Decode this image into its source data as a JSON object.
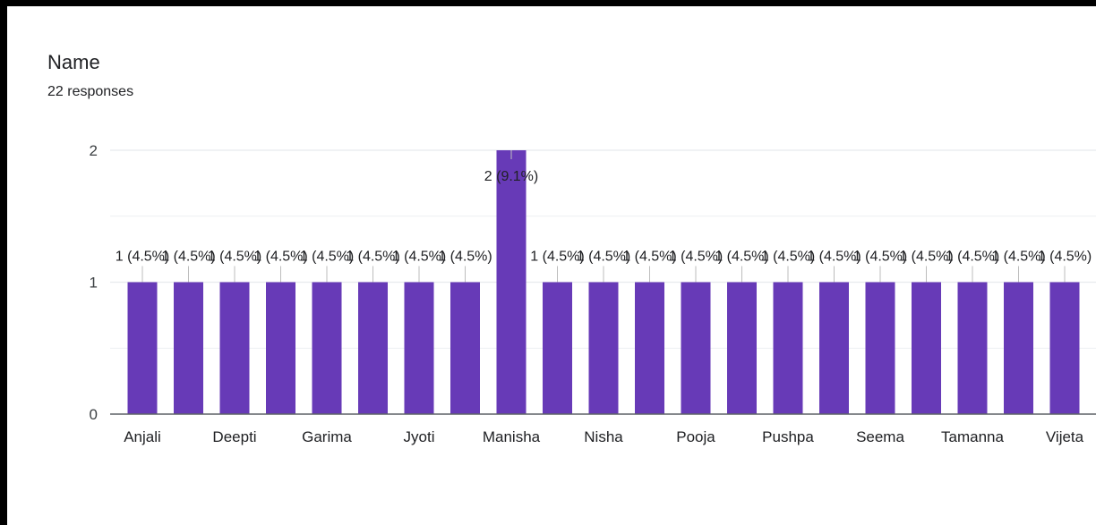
{
  "question": {
    "title": "Name",
    "responses": "22 responses"
  },
  "colors": {
    "bar": "#673ab7",
    "grid": "#e8eaed",
    "axis": "#5f6368"
  },
  "chart_data": {
    "type": "bar",
    "categories": [
      "Anjali",
      "",
      "Deepti",
      "",
      "Garima",
      "",
      "Jyoti",
      "",
      "Manisha",
      "",
      "Nisha",
      "",
      "Pooja",
      "",
      "Pushpa",
      "",
      "Seema",
      "",
      "Tamanna",
      "",
      "Vijeta"
    ],
    "values": [
      1,
      1,
      1,
      1,
      1,
      1,
      1,
      1,
      2,
      1,
      1,
      1,
      1,
      1,
      1,
      1,
      1,
      1,
      1,
      1,
      1
    ],
    "data_labels": [
      "1 (4.5%)",
      "1 (4.5%)",
      "1 (4.5%)",
      "1 (4.5%)",
      "1 (4.5%)",
      "1 (4.5%)",
      "1 (4.5%)",
      "1 (4.5%)",
      "2 (9.1%)",
      "1 (4.5%)",
      "1 (4.5%)",
      "1 (4.5%)",
      "1 (4.5%)",
      "1 (4.5%)",
      "1 (4.5%)",
      "1 (4.5%)",
      "1 (4.5%)",
      "1 (4.5%)",
      "1 (4.5%)",
      "1 (4.5%)",
      "1 (4.5%)"
    ],
    "title": "Name",
    "xlabel": "",
    "ylabel": "",
    "ylim": [
      0,
      2
    ],
    "yticks": [
      "0",
      "1",
      "2"
    ],
    "grid": true
  }
}
